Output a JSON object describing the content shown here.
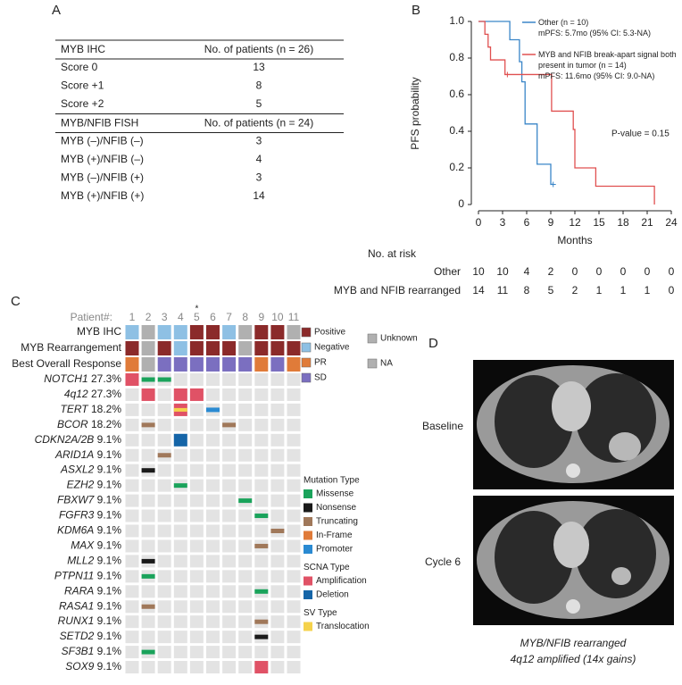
{
  "panels": [
    "A",
    "B",
    "C",
    "D"
  ],
  "table": {
    "sections": [
      {
        "header": [
          "MYB IHC",
          "No. of patients (n = 26)"
        ],
        "rows": [
          [
            "Score 0",
            13
          ],
          [
            "Score +1",
            8
          ],
          [
            "Score +2",
            5
          ]
        ]
      },
      {
        "header": [
          "MYB/NFIB FISH",
          "No. of patients (n = 24)"
        ],
        "rows": [
          [
            "MYB (–)/NFIB (–)",
            3
          ],
          [
            "MYB (+)/NFIB (–)",
            4
          ],
          [
            "MYB (–)/NFIB (+)",
            3
          ],
          [
            "MYB (+)/NFIB (+)",
            14
          ]
        ]
      }
    ]
  },
  "chart_data": {
    "type": "step",
    "xlabel": "Months",
    "ylabel": "PFS probability",
    "xlim": [
      0,
      24
    ],
    "xticks": [
      0,
      3,
      6,
      9,
      12,
      15,
      18,
      21,
      24
    ],
    "ylim": [
      0,
      1
    ],
    "yticks": [
      0,
      0.2,
      0.4,
      0.6,
      0.8,
      {
        "value": 1,
        "label": "1.0"
      }
    ],
    "annotation": "P-value = 0.15",
    "series": [
      {
        "name": "Other (n = 10)",
        "summary": "mPFS: 5.7mo (95% CI: 5.3-NA)",
        "color": "#3a86c8",
        "x": [
          0,
          3.9,
          5.1,
          5.4,
          5.8,
          7.3,
          9.0,
          9.3
        ],
        "values": [
          1,
          0.9,
          0.78,
          0.67,
          0.44,
          0.22,
          0.11,
          0.11
        ],
        "censor_x": [
          9.3
        ],
        "censor_values": [
          0.11
        ]
      },
      {
        "name": "MYB and NFIB break-apart signal both present in tumor (n = 14)",
        "summary": "mPFS: 11.6mo (95% CI: 9.0-NA)",
        "color": "#e05050",
        "x": [
          0,
          0.8,
          1.2,
          1.5,
          3.3,
          9.1,
          11.8,
          12.0,
          14.6,
          21.9
        ],
        "values": [
          1,
          0.93,
          0.86,
          0.79,
          0.71,
          0.51,
          0.41,
          0.2,
          0.1,
          0
        ],
        "censor_x": [
          3.6
        ],
        "censor_values": [
          0.71
        ]
      }
    ]
  },
  "risk_table": {
    "title": "No. at risk",
    "rows": [
      {
        "label": "Other",
        "counts": [
          10,
          10,
          4,
          2,
          0,
          0,
          0,
          0,
          0
        ]
      },
      {
        "label": "MYB and NFIB rearranged",
        "counts": [
          14,
          11,
          8,
          5,
          2,
          1,
          1,
          1,
          0
        ]
      }
    ]
  },
  "oncoprint": {
    "patient_label": "Patient#:",
    "patients": [
      {
        "id": 1
      },
      {
        "id": 2
      },
      {
        "id": 3
      },
      {
        "id": 4
      },
      {
        "id": 5,
        "note": "*"
      },
      {
        "id": 6
      },
      {
        "id": 7
      },
      {
        "id": 8
      },
      {
        "id": 9
      },
      {
        "id": 10
      },
      {
        "id": 11
      }
    ],
    "annotations": [
      {
        "label": "MYB IHC",
        "values": [
          "Negative",
          "Unknown",
          "Negative",
          "Negative",
          "Positive",
          "Positive",
          "Negative",
          "Unknown",
          "Positive",
          "Positive",
          "Unknown"
        ]
      },
      {
        "label": "MYB Rearrangement",
        "values": [
          "Positive",
          "Unknown",
          "Positive",
          "Negative",
          "Positive",
          "Positive",
          "Positive",
          "Unknown",
          "Positive",
          "Positive",
          "Positive"
        ]
      },
      {
        "label": "Best Overall Response",
        "values": [
          "PR",
          "NA",
          "SD",
          "SD",
          "SD",
          "SD",
          "SD",
          "SD",
          "PR",
          "SD",
          "PR"
        ]
      }
    ],
    "annotation_legend": [
      {
        "label": "Positive",
        "color": "#8b2a2a"
      },
      {
        "label": "Negative",
        "color": "#8ec0e4"
      },
      {
        "label": "PR",
        "color": "#e07b39"
      },
      {
        "label": "SD",
        "color": "#7b6fc0"
      },
      {
        "label": "Unknown",
        "color": "#b0b0b0"
      },
      {
        "label": "NA",
        "color": "#b0b0b0"
      }
    ],
    "genes": [
      {
        "name": "NOTCH1",
        "pct": "27.3%",
        "alterations": [
          {
            "patient": 1,
            "types": [
              "Amplification"
            ]
          },
          {
            "patient": 2,
            "types": [
              "Missense"
            ]
          },
          {
            "patient": 3,
            "types": [
              "Missense"
            ]
          }
        ]
      },
      {
        "name": "4q12",
        "pct": "27.3%",
        "alterations": [
          {
            "patient": 2,
            "types": [
              "Amplification"
            ]
          },
          {
            "patient": 4,
            "types": [
              "Amplification"
            ]
          },
          {
            "patient": 5,
            "types": [
              "Amplification"
            ]
          }
        ]
      },
      {
        "name": "TERT",
        "pct": "18.2%",
        "alterations": [
          {
            "patient": 4,
            "types": [
              "Amplification",
              "Translocation"
            ]
          },
          {
            "patient": 6,
            "types": [
              "Promoter"
            ]
          }
        ]
      },
      {
        "name": "BCOR",
        "pct": "18.2%",
        "alterations": [
          {
            "patient": 2,
            "types": [
              "Truncating"
            ]
          },
          {
            "patient": 7,
            "types": [
              "Truncating"
            ]
          }
        ]
      },
      {
        "name": "CDKN2A/2B",
        "pct": "9.1%",
        "alterations": [
          {
            "patient": 4,
            "types": [
              "Deletion"
            ]
          }
        ]
      },
      {
        "name": "ARID1A",
        "pct": "9.1%",
        "alterations": [
          {
            "patient": 3,
            "types": [
              "Truncating"
            ]
          }
        ]
      },
      {
        "name": "ASXL2",
        "pct": "9.1%",
        "alterations": [
          {
            "patient": 2,
            "types": [
              "Nonsense"
            ]
          }
        ]
      },
      {
        "name": "EZH2",
        "pct": "9.1%",
        "alterations": [
          {
            "patient": 4,
            "types": [
              "Missense"
            ]
          }
        ]
      },
      {
        "name": "FBXW7",
        "pct": "9.1%",
        "alterations": [
          {
            "patient": 8,
            "types": [
              "Missense"
            ]
          }
        ]
      },
      {
        "name": "FGFR3",
        "pct": "9.1%",
        "alterations": [
          {
            "patient": 9,
            "types": [
              "Missense"
            ]
          }
        ]
      },
      {
        "name": "KDM6A",
        "pct": "9.1%",
        "alterations": [
          {
            "patient": 10,
            "types": [
              "Truncating"
            ]
          }
        ]
      },
      {
        "name": "MAX",
        "pct": "9.1%",
        "alterations": [
          {
            "patient": 9,
            "types": [
              "Truncating"
            ]
          }
        ]
      },
      {
        "name": "MLL2",
        "pct": "9.1%",
        "alterations": [
          {
            "patient": 2,
            "types": [
              "Nonsense"
            ]
          }
        ]
      },
      {
        "name": "PTPN11",
        "pct": "9.1%",
        "alterations": [
          {
            "patient": 2,
            "types": [
              "Missense"
            ]
          }
        ]
      },
      {
        "name": "RARA",
        "pct": "9.1%",
        "alterations": [
          {
            "patient": 9,
            "types": [
              "Missense"
            ]
          }
        ]
      },
      {
        "name": "RASA1",
        "pct": "9.1%",
        "alterations": [
          {
            "patient": 2,
            "types": [
              "Truncating"
            ]
          }
        ]
      },
      {
        "name": "RUNX1",
        "pct": "9.1%",
        "alterations": [
          {
            "patient": 9,
            "types": [
              "Truncating"
            ]
          }
        ]
      },
      {
        "name": "SETD2",
        "pct": "9.1%",
        "alterations": [
          {
            "patient": 9,
            "types": [
              "Nonsense"
            ]
          }
        ]
      },
      {
        "name": "SF3B1",
        "pct": "9.1%",
        "alterations": [
          {
            "patient": 2,
            "types": [
              "Missense"
            ]
          }
        ]
      },
      {
        "name": "SOX9",
        "pct": "9.1%",
        "alterations": [
          {
            "patient": 9,
            "types": [
              "Amplification"
            ]
          }
        ]
      }
    ],
    "legend_groups": [
      {
        "title": "Mutation Type",
        "items": [
          {
            "label": "Missense",
            "color": "#1aa35b"
          },
          {
            "label": "Nonsense",
            "color": "#1a1a1a"
          },
          {
            "label": "Truncating",
            "color": "#a0785a"
          },
          {
            "label": "In-Frame",
            "color": "#e07b39"
          },
          {
            "label": "Promoter",
            "color": "#2a8ad2"
          }
        ]
      },
      {
        "title": "SCNA Type",
        "items": [
          {
            "label": "Amplification",
            "color": "#e05266"
          },
          {
            "label": "Deletion",
            "color": "#1565a8"
          }
        ]
      },
      {
        "title": "SV Type",
        "items": [
          {
            "label": "Translocation",
            "color": "#f5d24b"
          }
        ]
      }
    ]
  },
  "ct": {
    "labels": [
      "Baseline",
      "Cycle 6"
    ],
    "caption": [
      "MYB/NFIB rearranged",
      "4q12 amplified (14x gains)"
    ]
  }
}
